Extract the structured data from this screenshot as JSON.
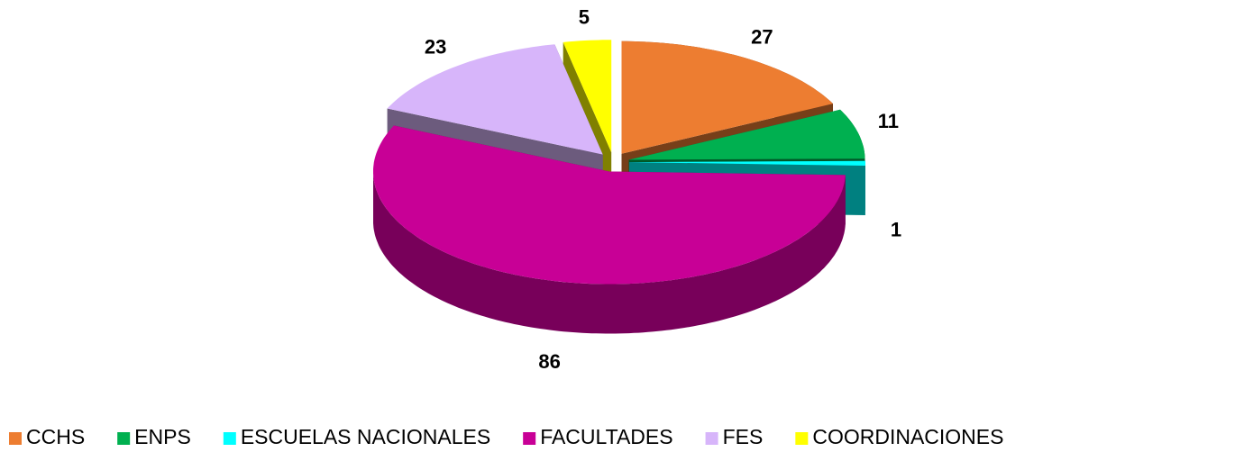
{
  "chart_data": {
    "type": "pie",
    "categories": [
      "CCHS",
      "ENPS",
      "ESCUELAS NACIONALES",
      "FACULTADES",
      "FES",
      "COORDINACIONES"
    ],
    "values": [
      27,
      11,
      1,
      86,
      23,
      5
    ],
    "colors": [
      "#ed7d31",
      "#00b050",
      "#00ffff",
      "#c80096",
      "#d7b5fa",
      "#ffff00"
    ],
    "legend": "bottom"
  }
}
